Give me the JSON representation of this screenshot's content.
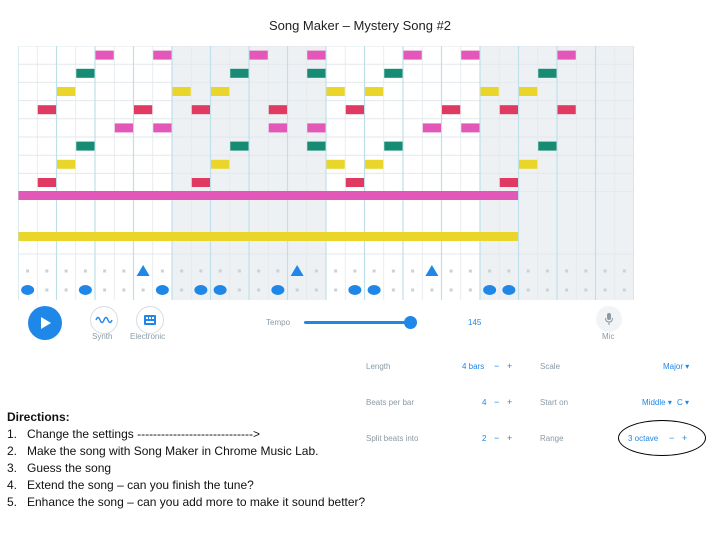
{
  "page_title": "Song Maker – Mystery Song #2",
  "colors": {
    "pink": "#e257b7",
    "teal": "#158c73",
    "yellow": "#ead62b",
    "red": "#e03a62",
    "blue": "#1f87e8",
    "grid_line": "#e3e8ec",
    "beat_line": "#bfe0ea",
    "shade": "#eef1f4"
  },
  "grid": {
    "columns": 32,
    "rows": 10,
    "notes": [
      {
        "row": 0,
        "col": 4,
        "color": "pink"
      },
      {
        "row": 0,
        "col": 7,
        "color": "pink"
      },
      {
        "row": 0,
        "col": 12,
        "color": "pink"
      },
      {
        "row": 0,
        "col": 15,
        "color": "pink"
      },
      {
        "row": 0,
        "col": 20,
        "color": "pink"
      },
      {
        "row": 0,
        "col": 23,
        "color": "pink"
      },
      {
        "row": 0,
        "col": 28,
        "color": "pink"
      },
      {
        "row": 1,
        "col": 3,
        "color": "teal"
      },
      {
        "row": 1,
        "col": 11,
        "color": "teal"
      },
      {
        "row": 1,
        "col": 15,
        "color": "teal"
      },
      {
        "row": 1,
        "col": 19,
        "color": "teal"
      },
      {
        "row": 1,
        "col": 27,
        "color": "teal"
      },
      {
        "row": 2,
        "col": 2,
        "color": "yellow"
      },
      {
        "row": 2,
        "col": 8,
        "color": "yellow"
      },
      {
        "row": 2,
        "col": 10,
        "color": "yellow"
      },
      {
        "row": 2,
        "col": 16,
        "color": "yellow"
      },
      {
        "row": 2,
        "col": 18,
        "color": "yellow"
      },
      {
        "row": 2,
        "col": 24,
        "color": "yellow"
      },
      {
        "row": 2,
        "col": 26,
        "color": "yellow"
      },
      {
        "row": 3,
        "col": 1,
        "color": "red"
      },
      {
        "row": 3,
        "col": 6,
        "color": "red"
      },
      {
        "row": 3,
        "col": 9,
        "color": "red"
      },
      {
        "row": 3,
        "col": 13,
        "color": "red"
      },
      {
        "row": 3,
        "col": 17,
        "color": "red"
      },
      {
        "row": 3,
        "col": 22,
        "color": "red"
      },
      {
        "row": 3,
        "col": 25,
        "color": "red"
      },
      {
        "row": 3,
        "col": 28,
        "color": "red"
      },
      {
        "row": 4,
        "col": 5,
        "color": "pink"
      },
      {
        "row": 4,
        "col": 7,
        "color": "pink"
      },
      {
        "row": 4,
        "col": 13,
        "color": "pink"
      },
      {
        "row": 4,
        "col": 15,
        "color": "pink"
      },
      {
        "row": 4,
        "col": 21,
        "color": "pink"
      },
      {
        "row": 4,
        "col": 23,
        "color": "pink"
      },
      {
        "row": 5,
        "col": 3,
        "color": "teal"
      },
      {
        "row": 5,
        "col": 11,
        "color": "teal"
      },
      {
        "row": 5,
        "col": 15,
        "color": "teal"
      },
      {
        "row": 5,
        "col": 19,
        "color": "teal"
      },
      {
        "row": 5,
        "col": 27,
        "color": "teal"
      },
      {
        "row": 6,
        "col": 2,
        "color": "yellow"
      },
      {
        "row": 6,
        "col": 10,
        "color": "yellow"
      },
      {
        "row": 6,
        "col": 16,
        "color": "yellow"
      },
      {
        "row": 6,
        "col": 18,
        "color": "yellow"
      },
      {
        "row": 6,
        "col": 26,
        "color": "yellow"
      },
      {
        "row": 7,
        "col": 1,
        "color": "red"
      },
      {
        "row": 7,
        "col": 9,
        "color": "red"
      },
      {
        "row": 7,
        "col": 17,
        "color": "red"
      },
      {
        "row": 7,
        "col": 25,
        "color": "red"
      },
      {
        "row": 8,
        "col": 0,
        "span": 26,
        "color": "pink"
      },
      {
        "row": 9,
        "col": 0,
        "span": 26,
        "color": "yellow"
      }
    ]
  },
  "percussion": {
    "triangles": [
      6,
      14,
      21
    ],
    "circles": [
      0,
      3,
      7,
      9,
      10,
      13,
      17,
      18,
      24,
      25
    ]
  },
  "controls": {
    "synth_label": "Synth",
    "electronic_label": "Electronic",
    "tempo_label": "Tempo",
    "tempo_value": "145",
    "mic_label": "Mic"
  },
  "settings": {
    "length_label": "Length",
    "length_value": "4 bars",
    "beats_label": "Beats per bar",
    "beats_value": "4",
    "split_label": "Split beats into",
    "split_value": "2",
    "scale_label": "Scale",
    "scale_value": "Major",
    "start_label": "Start on",
    "start_value": "Middle",
    "start_note": "C",
    "range_label": "Range",
    "range_value": "3 octave",
    "minus": "−",
    "plus": "+",
    "caret": "▾"
  },
  "directions": {
    "heading": "Directions:",
    "items": [
      {
        "num": "1.",
        "text": "Change the settings ----------------------------->"
      },
      {
        "num": "2.",
        "text": "Make the song with Song Maker in Chrome Music Lab."
      },
      {
        "num": "3.",
        "text": "Guess the song"
      },
      {
        "num": "4.",
        "text": "Extend the song – can you finish the tune?"
      },
      {
        "num": "5.",
        "text": "Enhance the song – can you add more to make it sound better?"
      }
    ]
  }
}
